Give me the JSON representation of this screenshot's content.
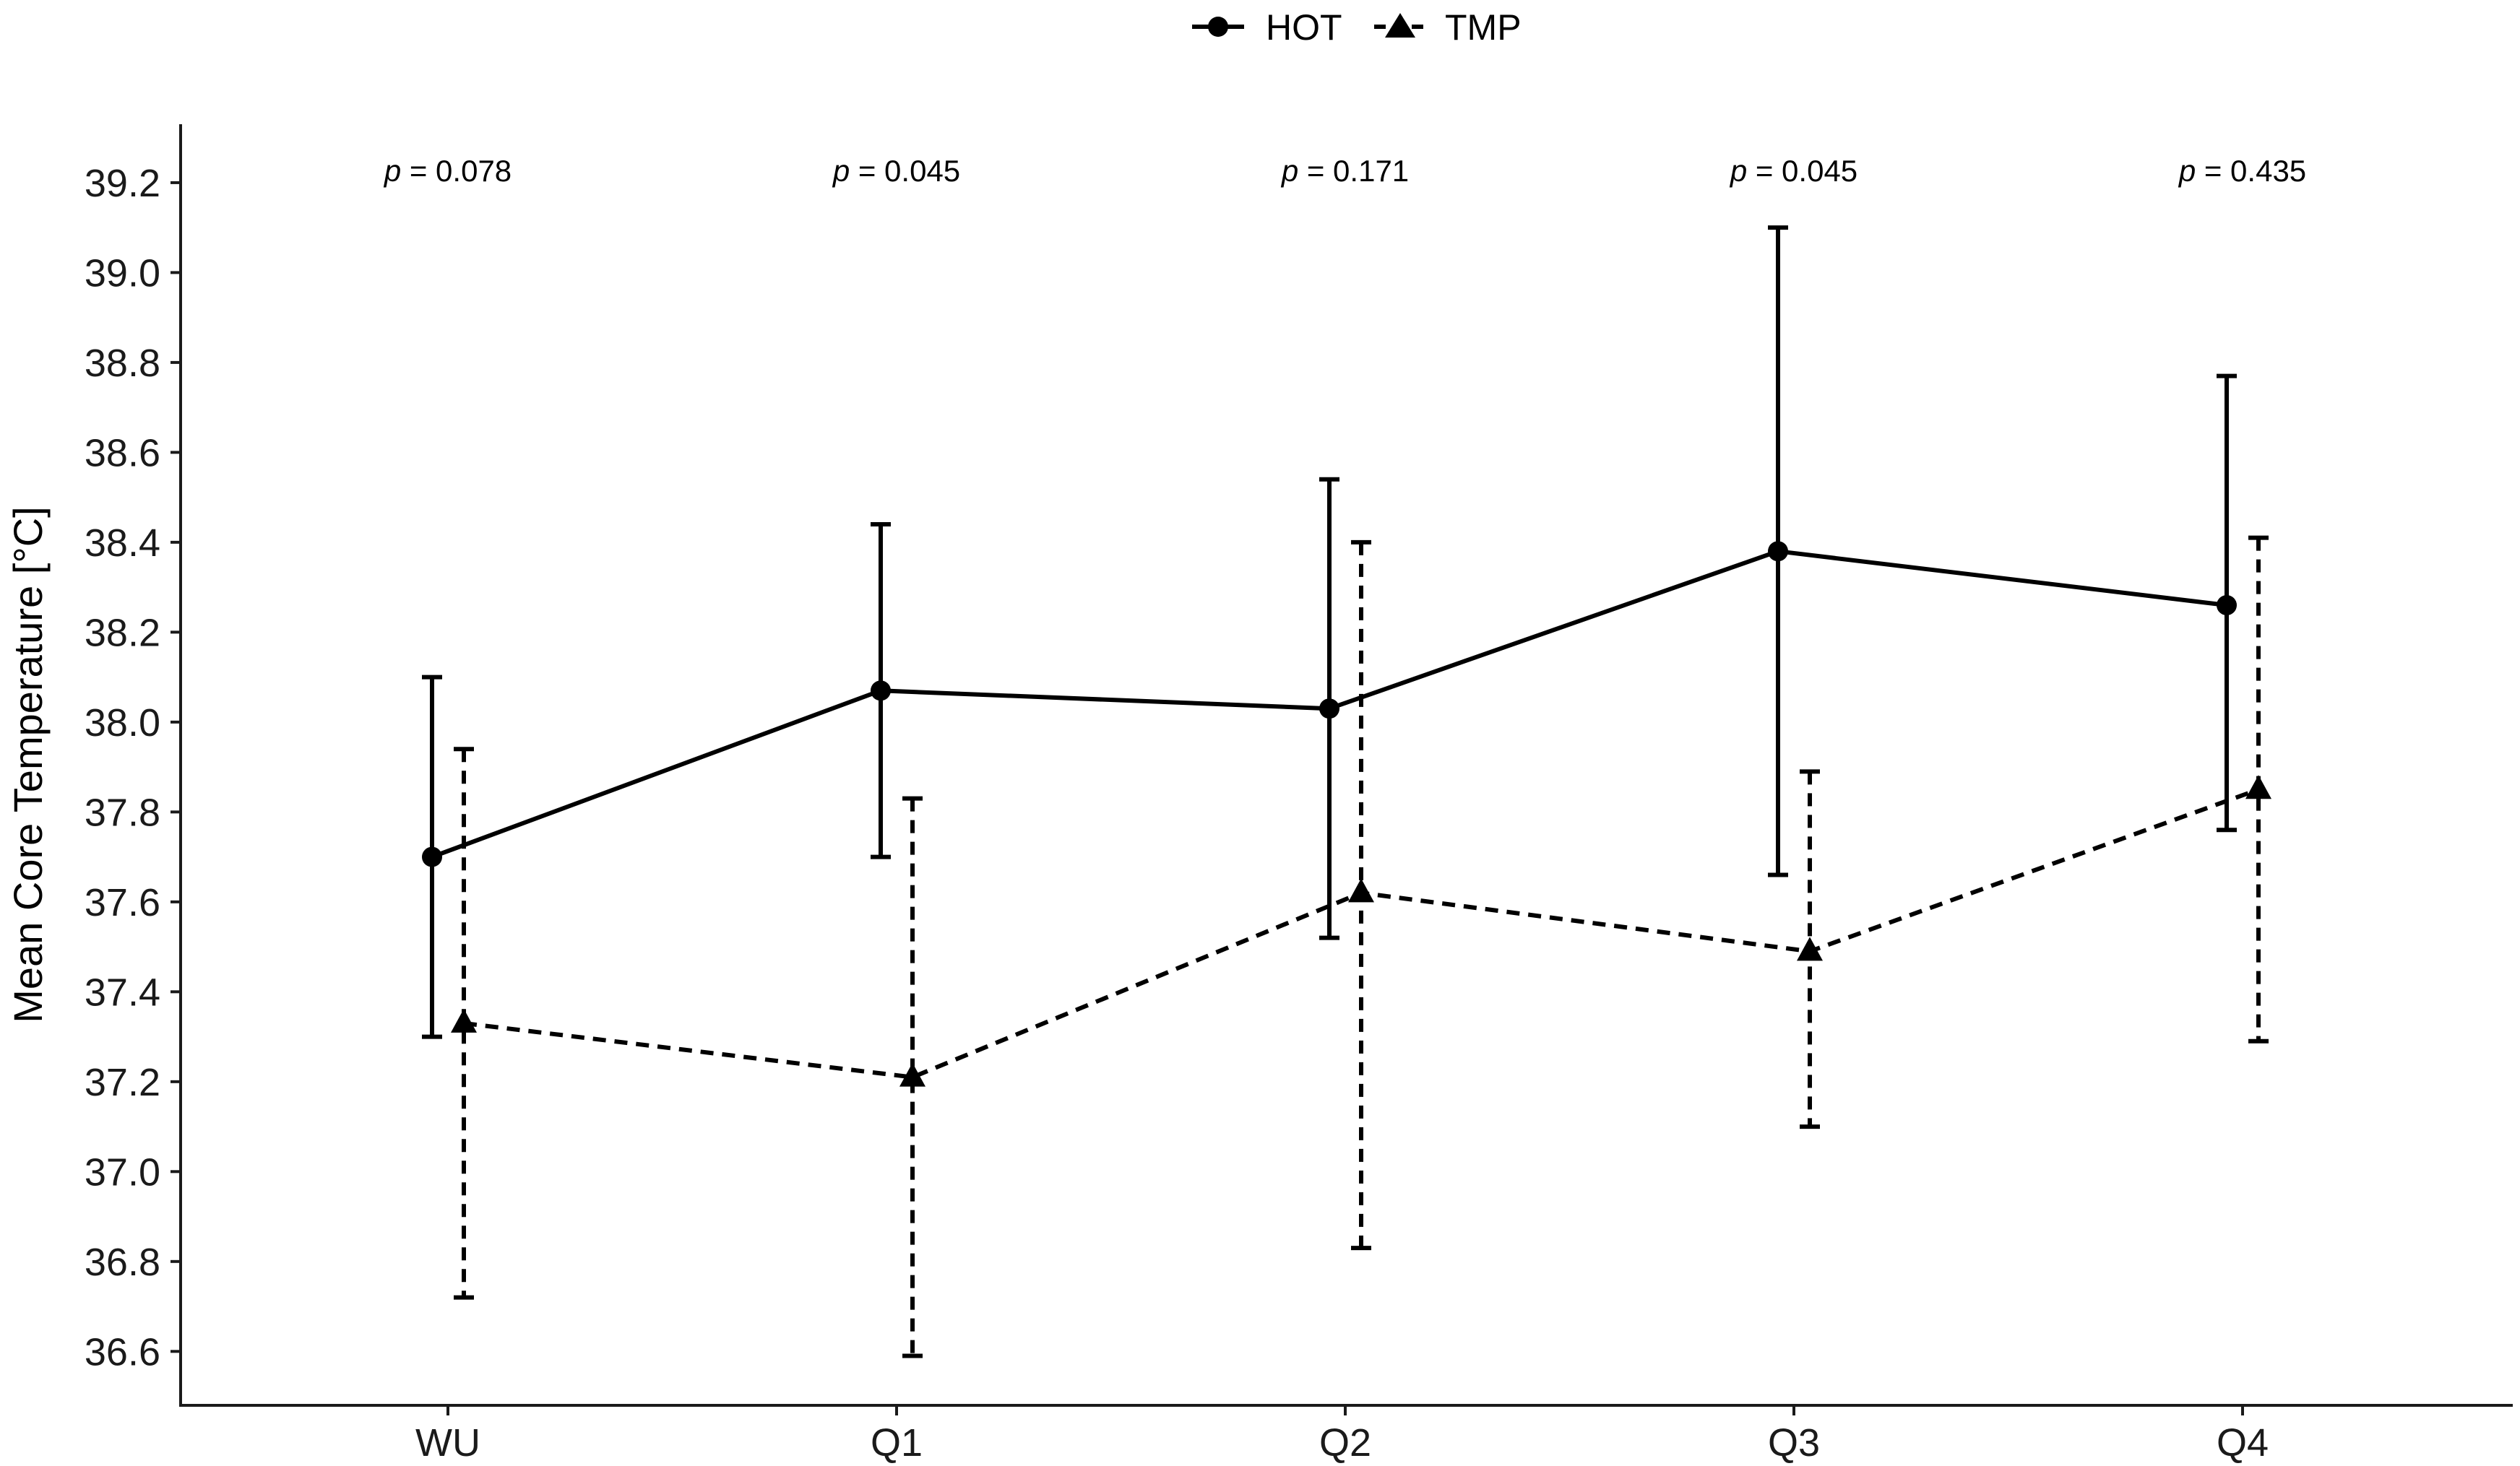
{
  "chart_data": {
    "type": "line",
    "title": "",
    "xlabel": "",
    "ylabel": "Mean Core Temperature [°C]",
    "categories": [
      "WU",
      "Q1",
      "Q2",
      "Q3",
      "Q4"
    ],
    "ylim": [
      36.48,
      39.33
    ],
    "yticks": [
      36.6,
      36.8,
      37.0,
      37.2,
      37.4,
      37.6,
      37.8,
      38.0,
      38.2,
      38.4,
      38.6,
      38.8,
      39.0,
      39.2
    ],
    "ytick_labels": [
      "36.6",
      "36.8",
      "37.0",
      "37.2",
      "37.4",
      "37.6",
      "37.8",
      "38.0",
      "38.2",
      "38.4",
      "38.6",
      "38.8",
      "39.0",
      "39.2"
    ],
    "grid": false,
    "legend_position": "top-center",
    "series": [
      {
        "name": "HOT",
        "marker": "circle",
        "linestyle": "solid",
        "color": "#000000",
        "values": [
          37.7,
          38.07,
          38.03,
          38.38,
          38.26
        ],
        "error_low": [
          37.3,
          37.7,
          37.52,
          37.66,
          37.76
        ],
        "error_high": [
          38.1,
          38.44,
          38.54,
          39.1,
          38.77
        ]
      },
      {
        "name": "TMP",
        "marker": "triangle",
        "linestyle": "dashed",
        "color": "#000000",
        "values": [
          37.33,
          37.21,
          37.62,
          37.49,
          37.85
        ],
        "error_low": [
          36.72,
          36.59,
          36.83,
          37.1,
          37.29
        ],
        "error_high": [
          37.94,
          37.83,
          38.4,
          37.89,
          38.41
        ]
      }
    ],
    "annotations": [
      {
        "category": "WU",
        "p_label": "p",
        "p_value": " = 0.078"
      },
      {
        "category": "Q1",
        "p_label": "p",
        "p_value": " = 0.045"
      },
      {
        "category": "Q2",
        "p_label": "p",
        "p_value": " = 0.171"
      },
      {
        "category": "Q3",
        "p_label": "p",
        "p_value": " = 0.045"
      },
      {
        "category": "Q4",
        "p_label": "p",
        "p_value": " = 0.435"
      }
    ]
  }
}
